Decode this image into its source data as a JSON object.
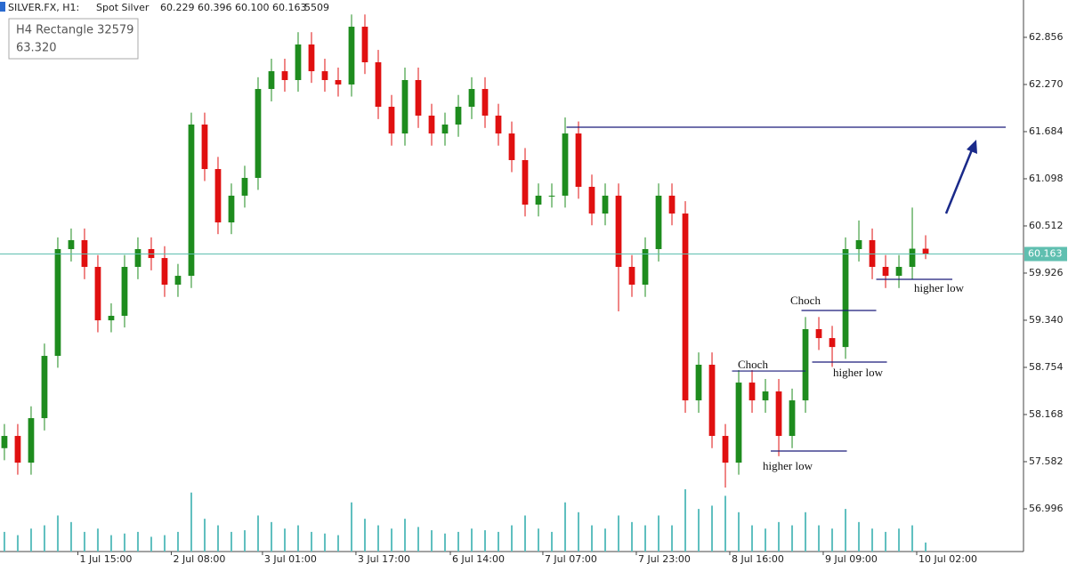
{
  "header": {
    "symbol": "SILVER.FX, H1:",
    "name": "Spot Silver",
    "ohlc": "60.229 60.396 60.100 60.163",
    "volume": "5509"
  },
  "tooltip": {
    "title": "H4 Rectangle 32579",
    "value": "63.320"
  },
  "chart_data": {
    "type": "candlestick",
    "up_color": "#1e8c1e",
    "down_color": "#e01010",
    "volume_color": "#5fbfbf",
    "price_line_color": "#5fbfb0",
    "xlim": [
      -0.33,
      76.33
    ],
    "ylim": [
      56.465,
      63.32
    ],
    "xticks": [
      {
        "value": 5.5,
        "label": "1 Jul 15:00"
      },
      {
        "value": 12.5,
        "label": "2 Jul 08:00"
      },
      {
        "value": 19.33,
        "label": "3 Jul 01:00"
      },
      {
        "value": 26.33,
        "label": "3 Jul 17:00"
      },
      {
        "value": 33.4,
        "label": "6 Jul 14:00"
      },
      {
        "value": 40.33,
        "label": "7 Jul 07:00"
      },
      {
        "value": 47.33,
        "label": "7 Jul 23:00"
      },
      {
        "value": 54.33,
        "label": "8 Jul 16:00"
      },
      {
        "value": 61.33,
        "label": "9 Jul 09:00"
      },
      {
        "value": 68.33,
        "label": "10 Jul 02:00"
      }
    ],
    "yticks": [
      62.856,
      {
        "value": 62.27,
        "label": "62.270"
      },
      61.684,
      61.098,
      60.512,
      59.926,
      {
        "value": 59.34,
        "label": "59.340"
      },
      58.754,
      58.168,
      57.582,
      56.996
    ],
    "open": [
      57.75,
      57.902,
      57.57,
      58.123,
      58.897,
      60.224,
      60.335,
      60.003,
      59.339,
      59.395,
      60.003,
      60.224,
      60.113,
      59.782,
      59.892,
      61.772,
      61.219,
      60.556,
      60.888,
      61.109,
      62.214,
      62.435,
      62.325,
      62.767,
      62.435,
      62.325,
      62.27,
      62.988,
      62.546,
      61.993,
      61.661,
      62.325,
      61.883,
      61.661,
      61.772,
      61.993,
      62.214,
      61.883,
      61.661,
      61.33,
      60.777,
      60.888,
      60.888,
      61.661,
      60.998,
      60.666,
      60.888,
      60.003,
      59.782,
      60.224,
      60.888,
      60.666,
      58.344,
      58.787,
      57.902,
      57.57,
      58.565,
      58.344,
      58.455,
      57.902,
      58.344,
      59.229,
      59.118,
      59.007,
      60.224,
      60.335,
      60.003,
      59.892,
      60.003,
      60.229
    ],
    "high": [
      58.05,
      58.05,
      58.27,
      59.05,
      60.37,
      60.48,
      60.48,
      60.15,
      59.55,
      60.15,
      60.37,
      60.37,
      60.26,
      60.04,
      61.92,
      61.92,
      61.37,
      61.04,
      61.26,
      62.36,
      62.59,
      62.59,
      62.92,
      62.92,
      62.59,
      62.48,
      63.14,
      63.14,
      62.7,
      62.14,
      62.48,
      62.48,
      62.03,
      61.92,
      62.14,
      62.36,
      62.36,
      62.03,
      61.81,
      61.48,
      61.04,
      61.04,
      61.86,
      61.81,
      61.15,
      61.04,
      61.04,
      60.15,
      60.37,
      61.04,
      61.04,
      60.82,
      58.94,
      58.94,
      58.05,
      58.72,
      58.72,
      58.61,
      58.61,
      58.49,
      59.38,
      59.38,
      59.27,
      60.37,
      60.58,
      60.48,
      60.15,
      60.15,
      60.74,
      60.396
    ],
    "low": [
      57.6,
      57.42,
      57.42,
      57.97,
      58.75,
      60.07,
      59.85,
      59.19,
      59.19,
      59.25,
      59.85,
      59.96,
      59.63,
      59.63,
      59.74,
      61.07,
      60.41,
      60.41,
      60.74,
      60.96,
      62.06,
      62.18,
      62.18,
      62.29,
      62.18,
      62.12,
      62.12,
      62.4,
      61.84,
      61.51,
      61.51,
      61.73,
      61.51,
      61.51,
      61.62,
      61.84,
      61.73,
      61.51,
      61.18,
      60.63,
      60.63,
      60.74,
      60.74,
      60.85,
      60.52,
      60.52,
      59.45,
      59.63,
      59.63,
      60.07,
      60.52,
      58.19,
      58.19,
      57.75,
      57.26,
      57.42,
      58.19,
      58.19,
      57.65,
      57.75,
      58.19,
      58.97,
      58.76,
      58.86,
      60.07,
      59.85,
      59.74,
      59.74,
      59.85,
      60.1
    ],
    "close": [
      57.902,
      57.57,
      58.123,
      58.897,
      60.224,
      60.335,
      60.003,
      59.339,
      59.395,
      60.003,
      60.224,
      60.113,
      59.782,
      59.892,
      61.772,
      61.219,
      60.556,
      60.888,
      61.109,
      62.214,
      62.435,
      62.325,
      62.767,
      62.435,
      62.325,
      62.27,
      62.988,
      62.546,
      61.993,
      61.661,
      62.325,
      61.883,
      61.661,
      61.772,
      61.993,
      62.214,
      61.883,
      61.661,
      61.33,
      60.777,
      60.888,
      60.888,
      61.661,
      60.998,
      60.666,
      60.888,
      60.003,
      59.782,
      60.224,
      60.888,
      60.666,
      58.344,
      58.787,
      57.902,
      57.57,
      58.565,
      58.344,
      58.455,
      57.902,
      58.344,
      59.229,
      59.118,
      59.007,
      60.224,
      60.335,
      60.003,
      59.892,
      60.003,
      60.229,
      60.163
    ],
    "volume": [
      12000,
      10000,
      14000,
      16000,
      22000,
      18000,
      12000,
      14000,
      10000,
      11000,
      12000,
      9000,
      10000,
      12000,
      36000,
      20000,
      16000,
      12000,
      13000,
      22000,
      18000,
      14000,
      16000,
      12000,
      11000,
      10000,
      30000,
      20000,
      16000,
      14000,
      20000,
      15000,
      13000,
      11000,
      12000,
      14000,
      13000,
      12000,
      16000,
      22000,
      14000,
      12000,
      30000,
      24000,
      16000,
      14000,
      22000,
      18000,
      16000,
      22000,
      16000,
      38000,
      26000,
      28000,
      34000,
      24000,
      16000,
      14000,
      18000,
      16000,
      24000,
      16000,
      14000,
      26000,
      18000,
      14000,
      12000,
      14000,
      16000,
      5509
    ],
    "levels": [
      {
        "price": 61.739,
        "from": 42.1,
        "to": 75
      },
      {
        "price": 59.461,
        "from": 59.7,
        "to": 65.3
      },
      {
        "price": 58.709,
        "from": 54.5,
        "to": 60
      },
      {
        "price": 58.82,
        "from": 60.5,
        "to": 66.1
      },
      {
        "price": 57.714,
        "from": 57.4,
        "to": 63.1
      },
      {
        "price": 59.848,
        "from": 65.3,
        "to": 71
      }
    ],
    "level_color": "#1a1a7a",
    "annotations": [
      "Choch",
      "Choch",
      "higher low",
      "higher low",
      "higher low"
    ]
  }
}
